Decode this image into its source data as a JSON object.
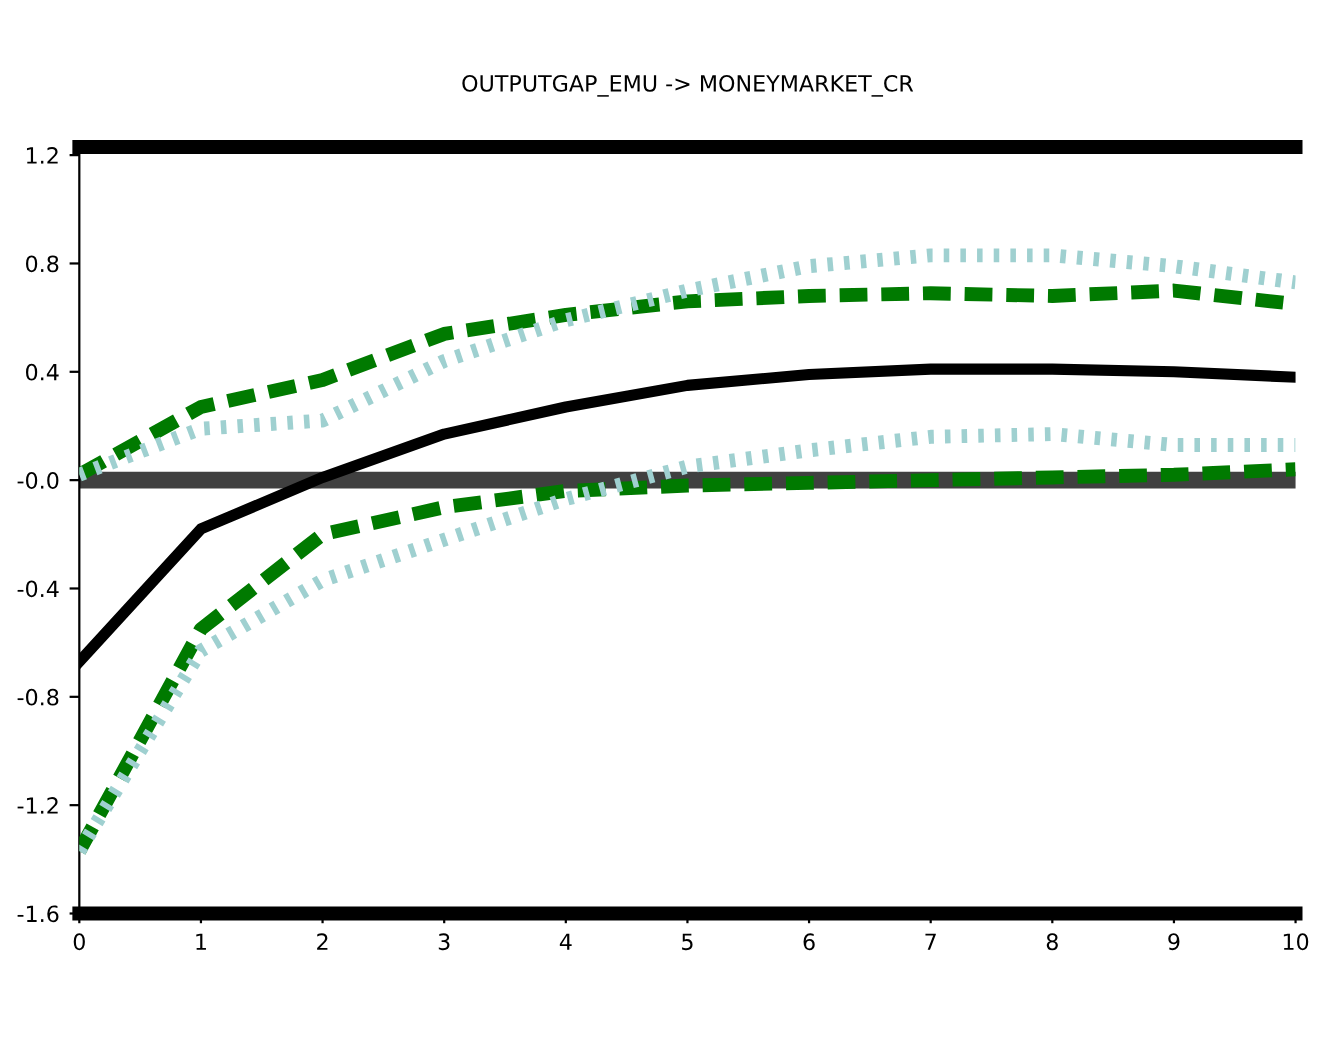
{
  "chart_data": {
    "type": "line",
    "title": "OUTPUTGAP_EMU -> MONEYMARKET_CR",
    "x": [
      0,
      1,
      2,
      3,
      4,
      5,
      6,
      7,
      8,
      9,
      10
    ],
    "series": [
      {
        "color": "#000000",
        "line_style": "solid",
        "values": [
          -0.67,
          -0.18,
          0.01,
          0.17,
          0.27,
          0.35,
          0.39,
          0.41,
          0.41,
          0.4,
          0.38
        ]
      },
      {
        "color": "#007a00",
        "line_style": "dashed",
        "values": [
          0.02,
          0.27,
          0.37,
          0.54,
          0.61,
          0.66,
          0.68,
          0.69,
          0.68,
          0.7,
          0.65
        ]
      },
      {
        "color": "#007a00",
        "line_style": "dashed",
        "values": [
          -1.37,
          -0.55,
          -0.2,
          -0.1,
          -0.04,
          -0.02,
          -0.01,
          0.0,
          0.01,
          0.02,
          0.04
        ]
      },
      {
        "color": "#9fd0d0",
        "line_style": "dotted",
        "values": [
          0.02,
          0.19,
          0.22,
          0.44,
          0.59,
          0.7,
          0.79,
          0.83,
          0.83,
          0.79,
          0.73
        ]
      },
      {
        "color": "#9fd0d0",
        "line_style": "dotted",
        "values": [
          -1.37,
          -0.63,
          -0.37,
          -0.22,
          -0.07,
          0.05,
          0.11,
          0.16,
          0.17,
          0.13,
          0.13
        ]
      }
    ],
    "ref_lines": [
      {
        "axis": "y",
        "value": 0,
        "color": "#404040"
      }
    ],
    "xlim": [
      0,
      10
    ],
    "xticks": [
      0,
      1,
      2,
      3,
      4,
      5,
      6,
      7,
      8,
      9,
      10
    ],
    "ylim": [
      -1.6,
      1.23
    ],
    "yticks": [
      1.2,
      0.8,
      0.4,
      {
        "value": 0,
        "label": "-0.0"
      },
      -0.4,
      -0.8,
      -1.2,
      -1.6
    ],
    "grid": false,
    "legend": false
  }
}
